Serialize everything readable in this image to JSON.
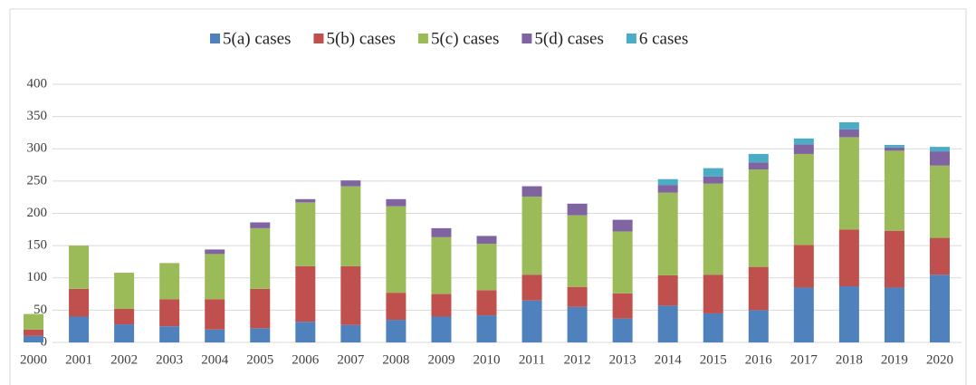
{
  "chart_data": {
    "type": "stacked_bar",
    "categories": [
      "2000",
      "2001",
      "2002",
      "2003",
      "2004",
      "2005",
      "2006",
      "2007",
      "2008",
      "2009",
      "2010",
      "2011",
      "2012",
      "2013",
      "2014",
      "2015",
      "2016",
      "2017",
      "2018",
      "2019",
      "2020"
    ],
    "series": [
      {
        "name": "5(a) cases",
        "color": "#4f81bd",
        "values": [
          10,
          40,
          28,
          25,
          20,
          22,
          32,
          27,
          35,
          40,
          42,
          65,
          55,
          37,
          57,
          45,
          50,
          85,
          87,
          85,
          105
        ]
      },
      {
        "name": "5(b) cases",
        "color": "#c0504d",
        "values": [
          10,
          43,
          24,
          42,
          47,
          61,
          86,
          91,
          42,
          35,
          39,
          40,
          31,
          39,
          47,
          60,
          67,
          66,
          88,
          88,
          57
        ]
      },
      {
        "name": "5(c) cases",
        "color": "#9bbb59",
        "values": [
          24,
          67,
          56,
          56,
          70,
          94,
          99,
          124,
          134,
          88,
          72,
          121,
          111,
          96,
          128,
          141,
          151,
          141,
          143,
          124,
          112
        ]
      },
      {
        "name": "5(d) cases",
        "color": "#8064a2",
        "values": [
          0,
          0,
          0,
          0,
          7,
          9,
          5,
          9,
          11,
          14,
          12,
          16,
          18,
          18,
          12,
          11,
          11,
          15,
          12,
          5,
          22
        ]
      },
      {
        "name": "6 cases",
        "color": "#4bacc6",
        "values": [
          0,
          0,
          0,
          0,
          0,
          0,
          0,
          0,
          0,
          0,
          0,
          0,
          0,
          0,
          9,
          13,
          13,
          9,
          11,
          4,
          7
        ]
      }
    ],
    "ylim": [
      0,
      400
    ],
    "yticks": [
      0,
      50,
      100,
      150,
      200,
      250,
      300,
      350,
      400
    ],
    "grid": true,
    "legend": "top"
  }
}
